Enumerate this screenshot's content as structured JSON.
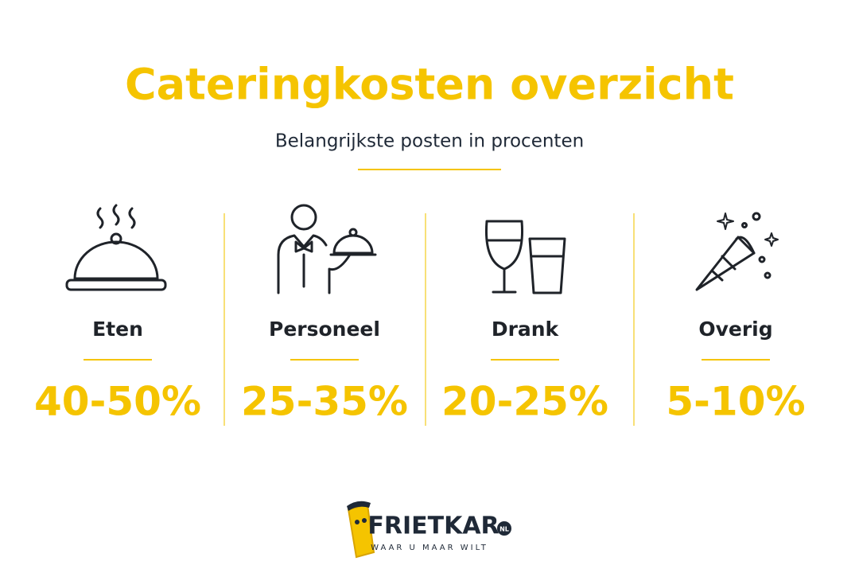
{
  "header": {
    "title": "Cateringkosten overzicht",
    "subtitle": "Belangrijkste posten in procenten"
  },
  "items": [
    {
      "label": "Eten",
      "value": "40-50%"
    },
    {
      "label": "Personeel",
      "value": "25-35%"
    },
    {
      "label": "Drank",
      "value": "20-25%"
    },
    {
      "label": "Overig",
      "value": "5-10%"
    }
  ],
  "logo": {
    "name": "FRIETKAR",
    "badge": "NL",
    "tagline": "WAAR U MAAR WILT"
  }
}
